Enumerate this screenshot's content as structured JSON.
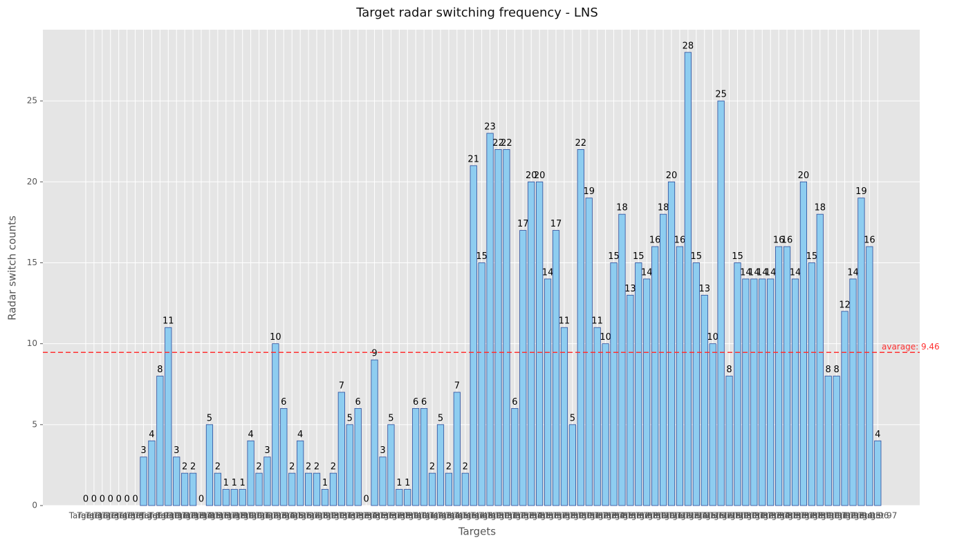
{
  "chart_data": {
    "type": "bar",
    "title": "Target radar switching frequency - LNS",
    "x_label": "Targets",
    "y_label": "Radar switch counts",
    "categories": [
      "Target 1",
      "Target 2",
      "Target 3",
      "Target 4",
      "Target 5",
      "Target 6",
      "Target 7",
      "Target 8",
      "Target 9",
      "Target 10",
      "Target 11",
      "Target 12",
      "Target 13",
      "Target 14",
      "Target 15",
      "Target 16",
      "Target 17",
      "Target 18",
      "Target 19",
      "Target 20",
      "Target 21",
      "Target 22",
      "Target 23",
      "Target 24",
      "Target 25",
      "Target 26",
      "Target 27",
      "Target 28",
      "Target 29",
      "Target 30",
      "Target 31",
      "Target 32",
      "Target 33",
      "Target 34",
      "Target 35",
      "Target 36",
      "Target 37",
      "Target 38",
      "Target 39",
      "Target 40",
      "Target 41",
      "Target 42",
      "Target 43",
      "Target 44",
      "Target 45",
      "Target 46",
      "Target 47",
      "Target 48",
      "Target 49",
      "Target 50",
      "Target 51",
      "Target 52",
      "Target 53",
      "Target 54",
      "Target 55",
      "Target 56",
      "Target 57",
      "Target 58",
      "Target 59",
      "Target 60",
      "Target 61",
      "Target 62",
      "Target 63",
      "Target 64",
      "Target 65",
      "Target 66",
      "Target 67",
      "Target 68",
      "Target 69",
      "Target 70",
      "Target 71",
      "Target 72",
      "Target 73",
      "Target 74",
      "Target 75",
      "Target 76",
      "Target 77",
      "Target 78",
      "Target 79",
      "Target 80",
      "Target 81",
      "Target 82",
      "Target 83",
      "Target 84",
      "Target 85",
      "Target 86",
      "Target 87",
      "Target 88",
      "Target 89",
      "Target 90",
      "Target 91",
      "Target 92",
      "Target 93",
      "Target 94",
      "Target 95",
      "Target 96",
      "Target 97"
    ],
    "values": [
      0,
      0,
      0,
      0,
      0,
      0,
      0,
      3,
      4,
      8,
      11,
      3,
      2,
      2,
      0,
      5,
      2,
      1,
      1,
      1,
      4,
      2,
      3,
      10,
      6,
      2,
      4,
      2,
      2,
      1,
      2,
      7,
      5,
      6,
      0,
      9,
      3,
      5,
      1,
      1,
      6,
      6,
      2,
      5,
      2,
      7,
      2,
      21,
      15,
      23,
      22,
      22,
      6,
      17,
      20,
      20,
      14,
      17,
      11,
      5,
      22,
      19,
      11,
      10,
      15,
      18,
      13,
      15,
      14,
      16,
      18,
      20,
      16,
      28,
      15,
      13,
      10,
      25,
      8,
      15,
      14,
      14,
      14,
      14,
      16,
      16,
      14,
      20,
      15,
      18,
      8,
      8,
      12,
      14,
      19,
      16,
      4
    ],
    "color": "#8ecdf0",
    "edge_color": "#2a4a9a",
    "average_line": {
      "value": 9.46,
      "label": "avarage: 9.46",
      "color": "#ff3030"
    },
    "ylim": [
      0,
      29.4
    ],
    "yticks": [
      0,
      5,
      10,
      15,
      20,
      25
    ],
    "grid": true
  }
}
